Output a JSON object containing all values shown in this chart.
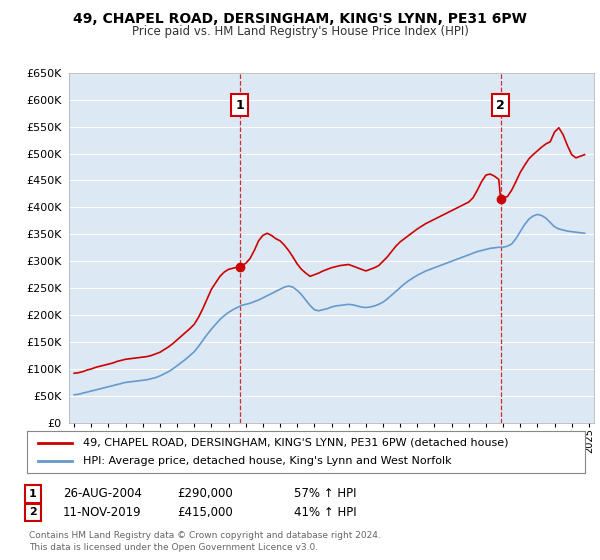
{
  "title": "49, CHAPEL ROAD, DERSINGHAM, KING'S LYNN, PE31 6PW",
  "subtitle": "Price paid vs. HM Land Registry's House Price Index (HPI)",
  "legend_line1": "49, CHAPEL ROAD, DERSINGHAM, KING'S LYNN, PE31 6PW (detached house)",
  "legend_line2": "HPI: Average price, detached house, King's Lynn and West Norfolk",
  "sale1_label": "1",
  "sale1_date": "26-AUG-2004",
  "sale1_price": "£290,000",
  "sale1_hpi": "57% ↑ HPI",
  "sale1_year": 2004.65,
  "sale1_value": 290000,
  "sale2_label": "2",
  "sale2_date": "11-NOV-2019",
  "sale2_price": "£415,000",
  "sale2_hpi": "41% ↑ HPI",
  "sale2_year": 2019.86,
  "sale2_value": 415000,
  "footer": "Contains HM Land Registry data © Crown copyright and database right 2024.\nThis data is licensed under the Open Government Licence v3.0.",
  "red_line_color": "#cc0000",
  "blue_line_color": "#6699cc",
  "vline_color": "#cc0000",
  "background_color": "#ffffff",
  "chart_bg_color": "#dde8f5",
  "grid_color": "#ffffff",
  "ylim": [
    0,
    650000
  ],
  "xlim_start": 1994.7,
  "xlim_end": 2025.3,
  "red_x": [
    1995.0,
    1995.25,
    1995.5,
    1995.75,
    1996.0,
    1996.25,
    1996.5,
    1996.75,
    1997.0,
    1997.25,
    1997.5,
    1997.75,
    1998.0,
    1998.25,
    1998.5,
    1998.75,
    1999.0,
    1999.25,
    1999.5,
    1999.75,
    2000.0,
    2000.25,
    2000.5,
    2000.75,
    2001.0,
    2001.25,
    2001.5,
    2001.75,
    2002.0,
    2002.25,
    2002.5,
    2002.75,
    2003.0,
    2003.25,
    2003.5,
    2003.75,
    2004.0,
    2004.25,
    2004.5,
    2004.65,
    2004.75,
    2005.0,
    2005.25,
    2005.5,
    2005.75,
    2006.0,
    2006.25,
    2006.5,
    2006.75,
    2007.0,
    2007.25,
    2007.5,
    2007.75,
    2008.0,
    2008.25,
    2008.5,
    2008.75,
    2009.0,
    2009.25,
    2009.5,
    2009.75,
    2010.0,
    2010.25,
    2010.5,
    2010.75,
    2011.0,
    2011.25,
    2011.5,
    2011.75,
    2012.0,
    2012.25,
    2012.5,
    2012.75,
    2013.0,
    2013.25,
    2013.5,
    2013.75,
    2014.0,
    2014.25,
    2014.5,
    2014.75,
    2015.0,
    2015.25,
    2015.5,
    2015.75,
    2016.0,
    2016.25,
    2016.5,
    2016.75,
    2017.0,
    2017.25,
    2017.5,
    2017.75,
    2018.0,
    2018.25,
    2018.5,
    2018.75,
    2019.0,
    2019.25,
    2019.5,
    2019.75,
    2019.86,
    2020.0,
    2020.25,
    2020.5,
    2020.75,
    2021.0,
    2021.25,
    2021.5,
    2021.75,
    2022.0,
    2022.25,
    2022.5,
    2022.75,
    2023.0,
    2023.25,
    2023.5,
    2023.75,
    2024.0,
    2024.25,
    2024.5,
    2024.75
  ],
  "red_y": [
    92000,
    93000,
    95000,
    98000,
    100000,
    103000,
    105000,
    107000,
    109000,
    111000,
    114000,
    116000,
    118000,
    119000,
    120000,
    121000,
    122000,
    123000,
    125000,
    128000,
    131000,
    136000,
    141000,
    147000,
    154000,
    161000,
    168000,
    175000,
    183000,
    196000,
    212000,
    230000,
    248000,
    260000,
    272000,
    280000,
    285000,
    287000,
    289000,
    290000,
    292000,
    296000,
    305000,
    320000,
    338000,
    348000,
    352000,
    348000,
    342000,
    338000,
    330000,
    320000,
    308000,
    295000,
    285000,
    278000,
    272000,
    275000,
    278000,
    282000,
    285000,
    288000,
    290000,
    292000,
    293000,
    294000,
    291000,
    288000,
    285000,
    282000,
    285000,
    288000,
    292000,
    300000,
    308000,
    318000,
    328000,
    336000,
    342000,
    348000,
    354000,
    360000,
    365000,
    370000,
    374000,
    378000,
    382000,
    386000,
    390000,
    394000,
    398000,
    402000,
    406000,
    410000,
    418000,
    432000,
    448000,
    460000,
    462000,
    458000,
    452000,
    415000,
    418000,
    420000,
    432000,
    448000,
    465000,
    478000,
    490000,
    498000,
    505000,
    512000,
    518000,
    522000,
    540000,
    548000,
    535000,
    515000,
    498000,
    492000,
    495000,
    498000
  ],
  "blue_x": [
    1995.0,
    1995.25,
    1995.5,
    1995.75,
    1996.0,
    1996.25,
    1996.5,
    1996.75,
    1997.0,
    1997.25,
    1997.5,
    1997.75,
    1998.0,
    1998.25,
    1998.5,
    1998.75,
    1999.0,
    1999.25,
    1999.5,
    1999.75,
    2000.0,
    2000.25,
    2000.5,
    2000.75,
    2001.0,
    2001.25,
    2001.5,
    2001.75,
    2002.0,
    2002.25,
    2002.5,
    2002.75,
    2003.0,
    2003.25,
    2003.5,
    2003.75,
    2004.0,
    2004.25,
    2004.5,
    2004.75,
    2005.0,
    2005.25,
    2005.5,
    2005.75,
    2006.0,
    2006.25,
    2006.5,
    2006.75,
    2007.0,
    2007.25,
    2007.5,
    2007.75,
    2008.0,
    2008.25,
    2008.5,
    2008.75,
    2009.0,
    2009.25,
    2009.5,
    2009.75,
    2010.0,
    2010.25,
    2010.5,
    2010.75,
    2011.0,
    2011.25,
    2011.5,
    2011.75,
    2012.0,
    2012.25,
    2012.5,
    2012.75,
    2013.0,
    2013.25,
    2013.5,
    2013.75,
    2014.0,
    2014.25,
    2014.5,
    2014.75,
    2015.0,
    2015.25,
    2015.5,
    2015.75,
    2016.0,
    2016.25,
    2016.5,
    2016.75,
    2017.0,
    2017.25,
    2017.5,
    2017.75,
    2018.0,
    2018.25,
    2018.5,
    2018.75,
    2019.0,
    2019.25,
    2019.5,
    2019.75,
    2020.0,
    2020.25,
    2020.5,
    2020.75,
    2021.0,
    2021.25,
    2021.5,
    2021.75,
    2022.0,
    2022.25,
    2022.5,
    2022.75,
    2023.0,
    2023.25,
    2023.5,
    2023.75,
    2024.0,
    2024.25,
    2024.5,
    2024.75
  ],
  "blue_y": [
    52000,
    53000,
    55000,
    57000,
    59000,
    61000,
    63000,
    65000,
    67000,
    69000,
    71000,
    73000,
    75000,
    76000,
    77000,
    78000,
    79000,
    80000,
    82000,
    84000,
    87000,
    91000,
    95000,
    100000,
    106000,
    112000,
    118000,
    125000,
    132000,
    142000,
    153000,
    164000,
    174000,
    183000,
    192000,
    199000,
    205000,
    210000,
    214000,
    218000,
    220000,
    222000,
    225000,
    228000,
    232000,
    236000,
    240000,
    244000,
    248000,
    252000,
    254000,
    252000,
    246000,
    238000,
    228000,
    218000,
    210000,
    208000,
    210000,
    212000,
    215000,
    217000,
    218000,
    219000,
    220000,
    219000,
    217000,
    215000,
    214000,
    215000,
    217000,
    220000,
    224000,
    230000,
    237000,
    244000,
    251000,
    258000,
    264000,
    269000,
    274000,
    278000,
    282000,
    285000,
    288000,
    291000,
    294000,
    297000,
    300000,
    303000,
    306000,
    309000,
    312000,
    315000,
    318000,
    320000,
    322000,
    324000,
    325000,
    326000,
    326000,
    328000,
    332000,
    342000,
    355000,
    368000,
    378000,
    384000,
    387000,
    385000,
    380000,
    372000,
    364000,
    360000,
    358000,
    356000,
    355000,
    354000,
    353000,
    352000
  ]
}
